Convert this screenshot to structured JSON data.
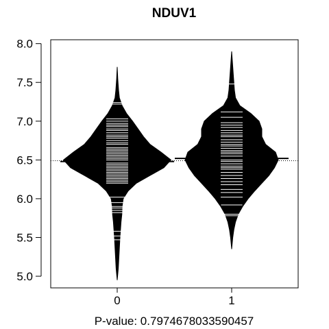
{
  "chart_data": {
    "type": "beanplot",
    "title": "NDUV1",
    "xlabel": "",
    "ylabel": "",
    "categories": [
      "0",
      "1"
    ],
    "y_ticks": [
      "5.0",
      "5.5",
      "6.0",
      "6.5",
      "7.0",
      "7.5",
      "8.0"
    ],
    "ylim": [
      4.85,
      8.05
    ],
    "overall_mean_line": 6.49,
    "annotation": "P-value: 0.7974678033590457",
    "grid": false,
    "legend": "none",
    "series": [
      {
        "category": "0",
        "mean": 6.48,
        "density_profile": [
          [
            4.95,
            0.0
          ],
          [
            5.1,
            0.02
          ],
          [
            5.3,
            0.035
          ],
          [
            5.5,
            0.05
          ],
          [
            5.7,
            0.07
          ],
          [
            5.8,
            0.085
          ],
          [
            5.9,
            0.09
          ],
          [
            6.0,
            0.11
          ],
          [
            6.1,
            0.2
          ],
          [
            6.2,
            0.35
          ],
          [
            6.3,
            0.6
          ],
          [
            6.4,
            0.85
          ],
          [
            6.5,
            0.98
          ],
          [
            6.6,
            0.8
          ],
          [
            6.7,
            0.6
          ],
          [
            6.8,
            0.48
          ],
          [
            6.9,
            0.38
          ],
          [
            7.0,
            0.28
          ],
          [
            7.1,
            0.17
          ],
          [
            7.2,
            0.09
          ],
          [
            7.3,
            0.04
          ],
          [
            7.4,
            0.025
          ],
          [
            7.55,
            0.01
          ],
          [
            7.7,
            0.0
          ]
        ],
        "observations": [
          5.47,
          5.52,
          5.58,
          5.82,
          5.85,
          5.88,
          5.9,
          5.95,
          6.02,
          6.2,
          6.22,
          6.24,
          6.26,
          6.28,
          6.3,
          6.32,
          6.34,
          6.36,
          6.38,
          6.4,
          6.42,
          6.44,
          6.46,
          6.48,
          6.5,
          6.52,
          6.54,
          6.56,
          6.58,
          6.6,
          6.62,
          6.64,
          6.66,
          6.7,
          6.72,
          6.75,
          6.78,
          6.8,
          6.82,
          6.85,
          6.88,
          6.9,
          6.93,
          6.95,
          6.97,
          7.0,
          7.03,
          7.22,
          7.24
        ]
      },
      {
        "category": "1",
        "mean": 6.52,
        "density_profile": [
          [
            5.35,
            0.0
          ],
          [
            5.5,
            0.02
          ],
          [
            5.6,
            0.04
          ],
          [
            5.7,
            0.07
          ],
          [
            5.8,
            0.12
          ],
          [
            5.9,
            0.2
          ],
          [
            6.0,
            0.3
          ],
          [
            6.1,
            0.42
          ],
          [
            6.2,
            0.55
          ],
          [
            6.3,
            0.68
          ],
          [
            6.4,
            0.78
          ],
          [
            6.5,
            0.85
          ],
          [
            6.6,
            0.8
          ],
          [
            6.7,
            0.62
          ],
          [
            6.8,
            0.55
          ],
          [
            6.9,
            0.55
          ],
          [
            7.0,
            0.5
          ],
          [
            7.1,
            0.35
          ],
          [
            7.2,
            0.15
          ],
          [
            7.3,
            0.07
          ],
          [
            7.4,
            0.05
          ],
          [
            7.5,
            0.04
          ],
          [
            7.6,
            0.03
          ],
          [
            7.75,
            0.015
          ],
          [
            7.9,
            0.0
          ]
        ],
        "observations": [
          5.78,
          5.8,
          5.92,
          6.02,
          6.08,
          6.12,
          6.18,
          6.22,
          6.26,
          6.3,
          6.34,
          6.38,
          6.4,
          6.42,
          6.45,
          6.48,
          6.5,
          6.52,
          6.55,
          6.58,
          6.6,
          6.62,
          6.65,
          6.68,
          6.7,
          6.73,
          6.76,
          6.8,
          6.82,
          6.85,
          6.88,
          6.92,
          6.95,
          6.98,
          7.05,
          7.12,
          7.48
        ]
      }
    ]
  }
}
